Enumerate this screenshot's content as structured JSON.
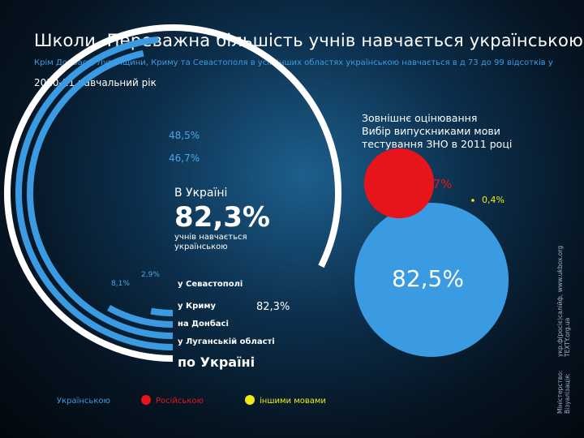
{
  "title": "Школи. Переважна більшість учнів навчається українською",
  "subtitle": "Крім Донбасу, Луганщини, Криму та Севастополя в усіх інших областях українською навчається в д 73 до 99 відсотків учнів.",
  "year": "2010-11 навчальний рік",
  "colors": {
    "ukrainian": "#3a9be2",
    "russian": "#e8141c",
    "other": "#f2ea10",
    "accent": "#4aa6ea"
  },
  "center": {
    "label": "В Україні",
    "value": "82,3%",
    "description": "учнів навчається українською"
  },
  "chart_data": [
    {
      "type": "radial-bar",
      "series_name": "Українською",
      "categories": [
        "у Севастополі",
        "у Криму",
        "на Донбасі",
        "у Луганській області",
        "по Україні"
      ],
      "values": [
        2.9,
        8.1,
        46.7,
        48.5,
        82.3
      ],
      "value_labels": [
        "2,9%",
        "8,1%",
        "46,7%",
        "48,5%",
        "82,3%"
      ],
      "max": 100
    },
    {
      "type": "bubble",
      "title": "Зовнішнє оцінювання Вибір випускниками мови тестування ЗНО в 2011 році",
      "categories": [
        "Українською",
        "Російською",
        "іншими мовами"
      ],
      "values": [
        82.5,
        17,
        0.4
      ],
      "value_labels": [
        "82,5%",
        "17%",
        "0,4%"
      ]
    }
  ],
  "external": {
    "title_line1": "Зовнішнє оцінювання",
    "title_line2": "Вибір випускниками мови",
    "title_line3": "тестування ЗНО в 2011 році"
  },
  "legend": [
    {
      "label": "Українською",
      "color": "#3a9be2"
    },
    {
      "label": "Російською",
      "color": "#e8141c"
    },
    {
      "label": "іншими мовами",
      "color": "#f2ea10"
    }
  ],
  "credits": {
    "line1": "Міністерство:",
    "line2": "Візуалізація:",
    "line1_value": "укр.ф(росіє)салійф, www.ukbox.org",
    "line2_value": "TEXTY.org.ua"
  }
}
